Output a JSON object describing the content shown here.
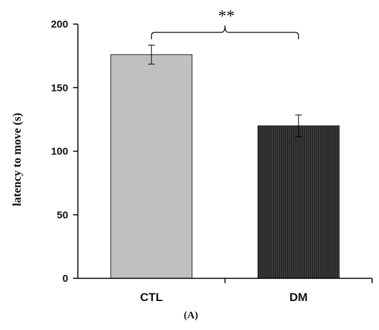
{
  "chart_data": {
    "type": "bar",
    "categories": [
      "CTL",
      "DM"
    ],
    "values": [
      176,
      120
    ],
    "errors": [
      7.5,
      8.5
    ],
    "bar_colors": [
      "#c0c0c0",
      "#3a3a3a"
    ],
    "title": "",
    "xlabel": "",
    "ylabel": "latency to move (s)",
    "ylim": [
      0,
      200
    ],
    "yticks": [
      0,
      50,
      100,
      150,
      200
    ],
    "significance": {
      "between": [
        0,
        1
      ],
      "label": "**"
    },
    "panel_label": "(A)",
    "grid": false,
    "legend": "none"
  }
}
